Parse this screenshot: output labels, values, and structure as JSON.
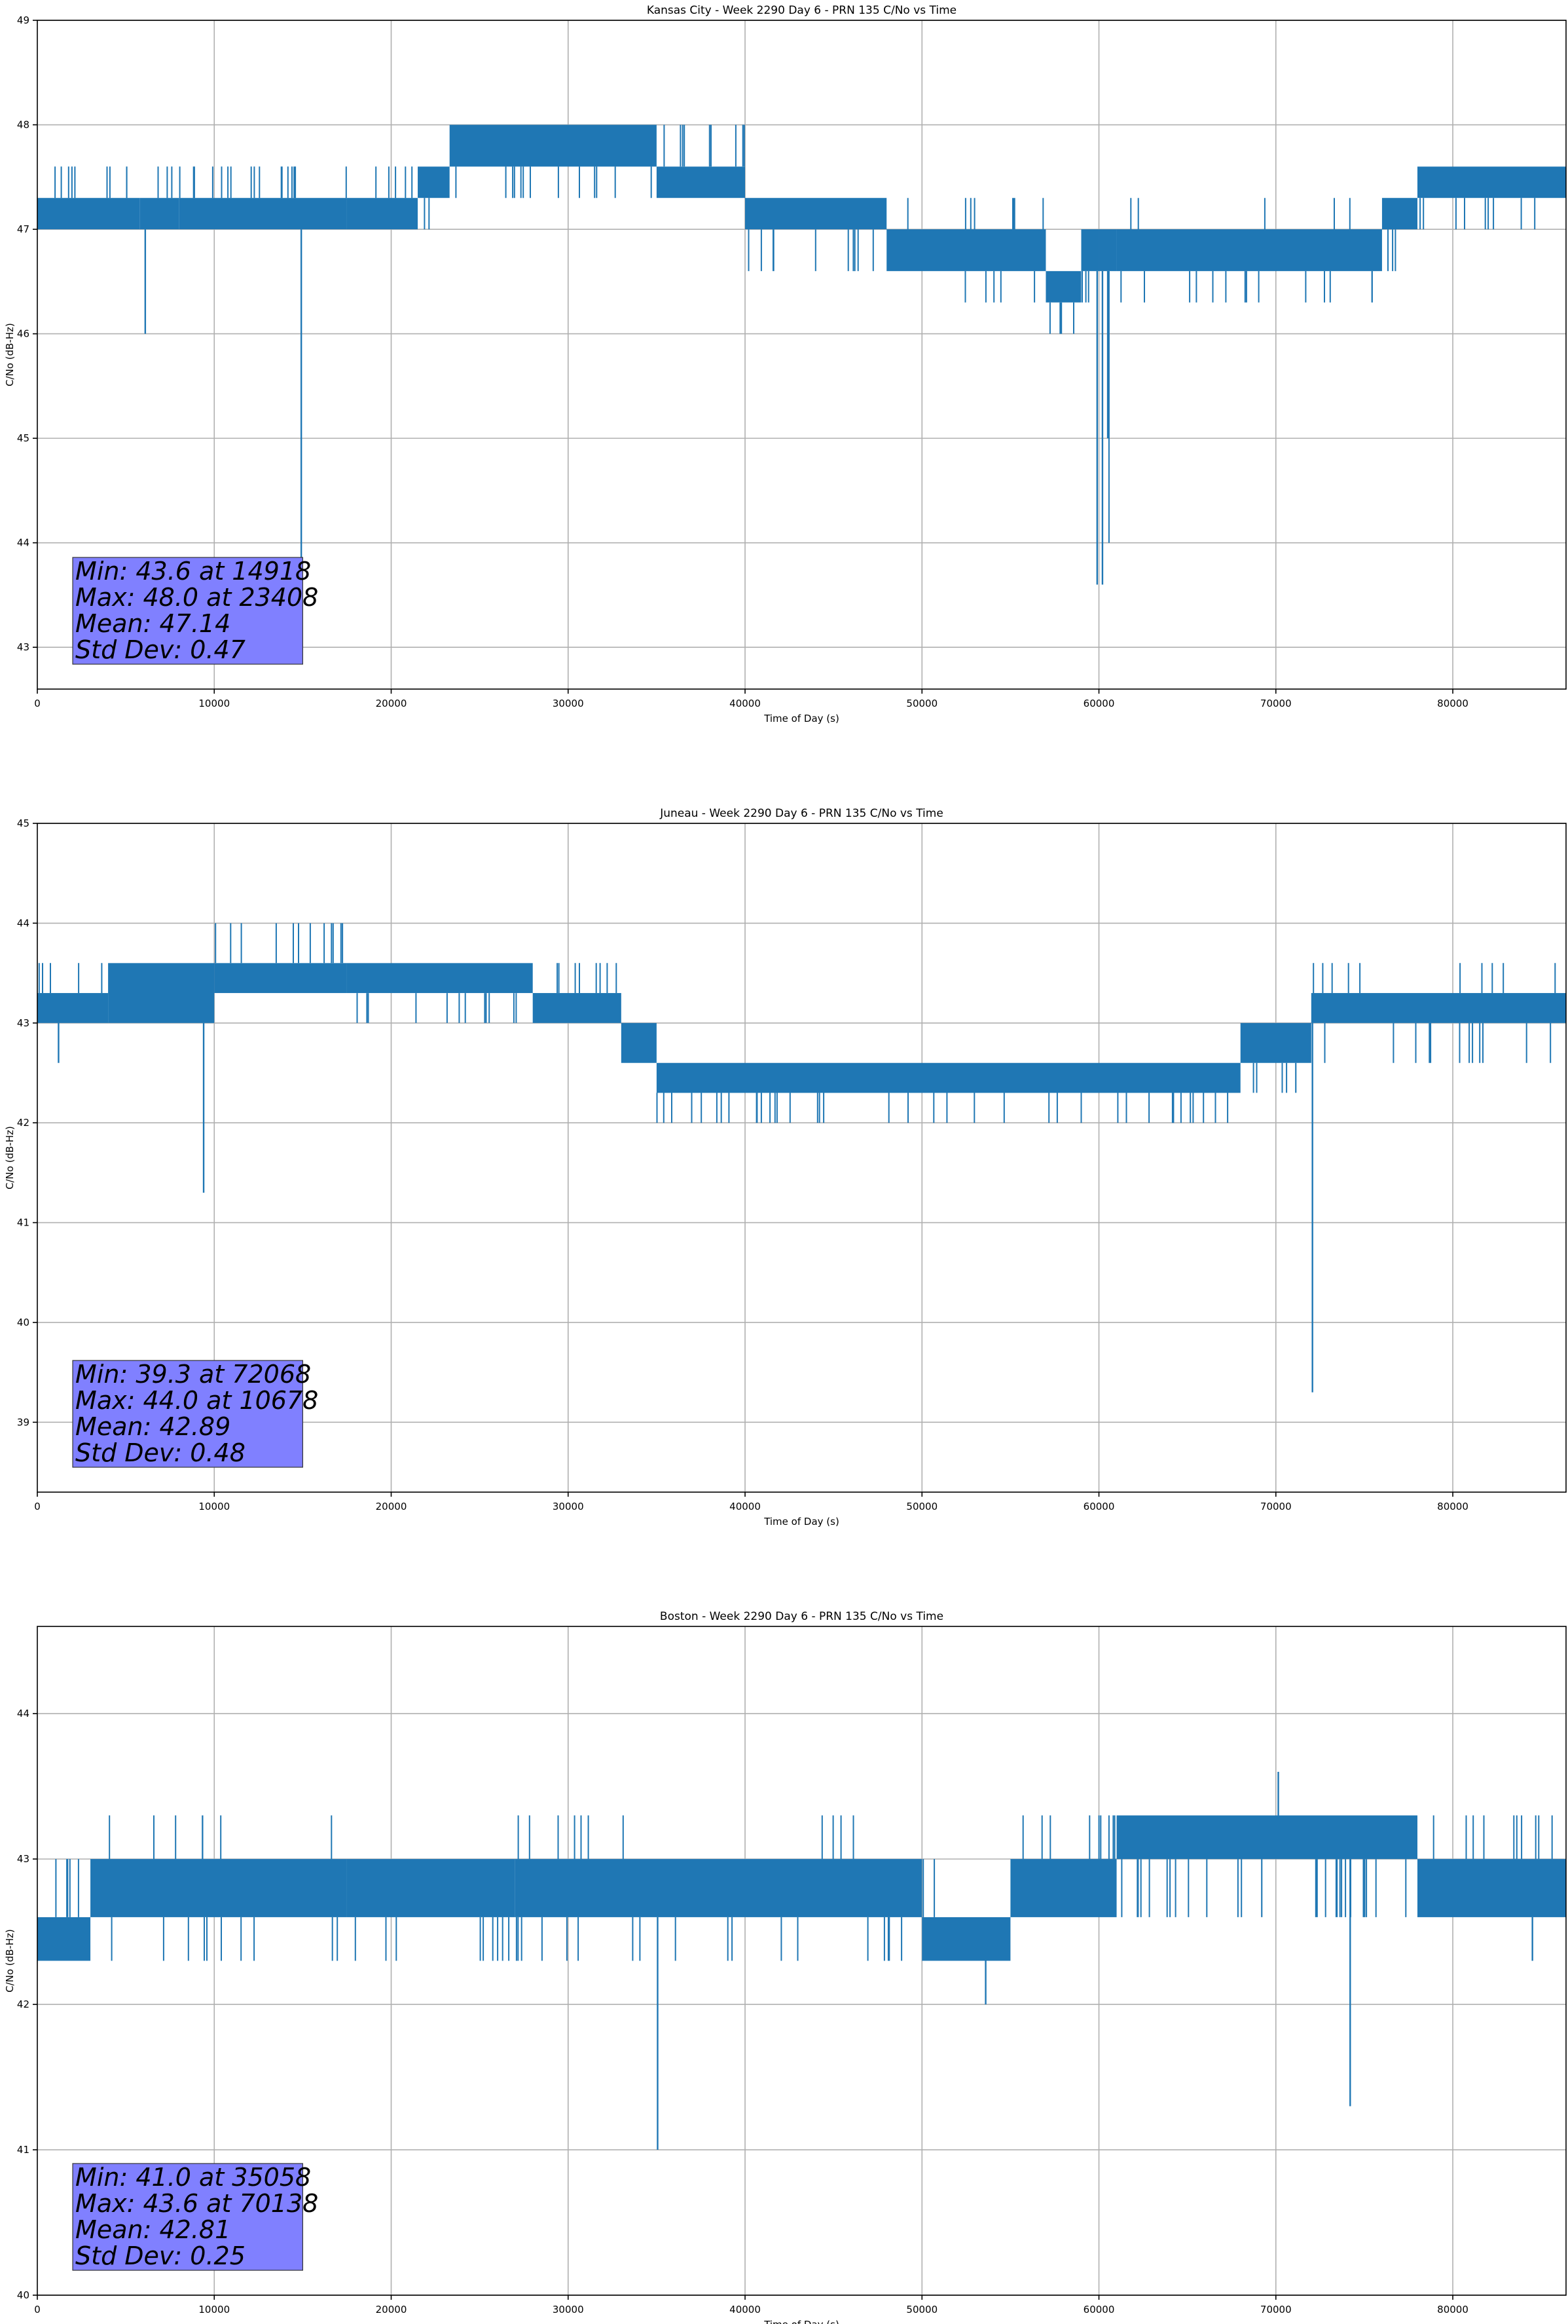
{
  "chart_data": [
    {
      "type": "line",
      "title": "Kansas City - Week 2290 Day 6 - PRN 135 C/No vs Time",
      "xlabel": "Time of Day (s)",
      "ylabel": "C/No (dB-Hz)",
      "xlim": [
        0,
        86400
      ],
      "ylim": [
        42.6,
        49
      ],
      "xticks": [
        "0",
        "10000",
        "20000",
        "30000",
        "40000",
        "50000",
        "60000",
        "70000",
        "80000"
      ],
      "yticks": [
        "43",
        "44",
        "45",
        "46",
        "47",
        "48",
        "49"
      ],
      "grid": true,
      "color": "#1f77b4",
      "stats_box": [
        "Min: 43.6 at 14918",
        "Max: 48.0 at 23408",
        "Mean: 47.14",
        "Std Dev: 0.47"
      ],
      "bands": [
        {
          "x": [
            0,
            5800
          ],
          "y": [
            47.0,
            47.3
          ],
          "spikes": [
            47.6
          ]
        },
        {
          "x": [
            5800,
            8000
          ],
          "y": [
            47.0,
            47.3
          ],
          "spikes": [
            47.6
          ]
        },
        {
          "x": [
            8000,
            17500
          ],
          "y": [
            47.0,
            47.3
          ],
          "spikes": [
            47.6
          ]
        },
        {
          "x": [
            17500,
            21500
          ],
          "y": [
            47.0,
            47.3
          ],
          "spikes": [
            47.6
          ]
        },
        {
          "x": [
            21500,
            23300
          ],
          "y": [
            47.3,
            47.6
          ],
          "spikes": [
            47.0
          ]
        },
        {
          "x": [
            23300,
            35000
          ],
          "y": [
            47.6,
            48.0
          ],
          "spikes": [
            47.3
          ]
        },
        {
          "x": [
            35000,
            40000
          ],
          "y": [
            47.3,
            47.6
          ],
          "spikes": [
            48.0
          ]
        },
        {
          "x": [
            40000,
            48000
          ],
          "y": [
            47.0,
            47.3
          ],
          "spikes": [
            46.6
          ]
        },
        {
          "x": [
            48000,
            57000
          ],
          "y": [
            46.6,
            47.0
          ],
          "spikes": [
            46.3,
            47.3
          ]
        },
        {
          "x": [
            57000,
            59000
          ],
          "y": [
            46.3,
            46.6
          ],
          "spikes": [
            46.0
          ]
        },
        {
          "x": [
            59000,
            60000
          ],
          "y": [
            46.6,
            47.0
          ],
          "spikes": [
            46.3
          ]
        },
        {
          "x": [
            60000,
            61000
          ],
          "y": [
            46.6,
            47.0
          ],
          "spikes": [
            44.0
          ]
        },
        {
          "x": [
            61000,
            76000
          ],
          "y": [
            46.6,
            47.0
          ],
          "spikes": [
            46.3,
            47.3
          ]
        },
        {
          "x": [
            76000,
            78000
          ],
          "y": [
            47.0,
            47.3
          ],
          "spikes": [
            46.6
          ]
        },
        {
          "x": [
            78000,
            86400
          ],
          "y": [
            47.3,
            47.6
          ],
          "spikes": [
            47.0
          ]
        }
      ],
      "dips": [
        [
          6100,
          46.0
        ],
        [
          14918,
          43.6
        ],
        [
          59900,
          43.6
        ],
        [
          60200,
          43.6
        ],
        [
          60500,
          45.0
        ]
      ]
    },
    {
      "type": "line",
      "title": "Juneau - Week 2290 Day 6 - PRN 135 C/No vs Time",
      "xlabel": "Time of Day (s)",
      "ylabel": "C/No (dB-Hz)",
      "xlim": [
        0,
        86400
      ],
      "ylim": [
        38.3,
        45
      ],
      "xticks": [
        "0",
        "10000",
        "20000",
        "30000",
        "40000",
        "50000",
        "60000",
        "70000",
        "80000"
      ],
      "yticks": [
        "39",
        "40",
        "41",
        "42",
        "43",
        "44",
        "45"
      ],
      "grid": true,
      "color": "#1f77b4",
      "stats_box": [
        "Min: 39.3 at 72068",
        "Max: 44.0 at 10678",
        "Mean: 42.89",
        "Std Dev: 0.48"
      ],
      "bands": [
        {
          "x": [
            0,
            4000
          ],
          "y": [
            43.0,
            43.3
          ],
          "spikes": [
            43.6
          ]
        },
        {
          "x": [
            4000,
            10000
          ],
          "y": [
            43.0,
            43.6
          ],
          "spikes": [
            43.0
          ]
        },
        {
          "x": [
            10000,
            17500
          ],
          "y": [
            43.3,
            43.6
          ],
          "spikes": [
            44.0
          ]
        },
        {
          "x": [
            17500,
            28000
          ],
          "y": [
            43.3,
            43.6
          ],
          "spikes": [
            43.0
          ]
        },
        {
          "x": [
            28000,
            33000
          ],
          "y": [
            43.0,
            43.3
          ],
          "spikes": [
            43.6
          ]
        },
        {
          "x": [
            33000,
            35000
          ],
          "y": [
            42.6,
            43.0
          ],
          "spikes": [
            43.3
          ]
        },
        {
          "x": [
            35000,
            68000
          ],
          "y": [
            42.3,
            42.6
          ],
          "spikes": [
            42.0
          ]
        },
        {
          "x": [
            68000,
            72000
          ],
          "y": [
            42.6,
            43.0
          ],
          "spikes": [
            42.3
          ]
        },
        {
          "x": [
            72000,
            86400
          ],
          "y": [
            43.0,
            43.3
          ],
          "spikes": [
            42.6,
            43.6
          ]
        }
      ],
      "dips": [
        [
          1200,
          42.6
        ],
        [
          9400,
          41.3
        ],
        [
          72068,
          39.3
        ]
      ]
    },
    {
      "type": "line",
      "title": "Boston - Week 2290 Day 6 - PRN 135 C/No vs Time",
      "xlabel": "Time of Day (s)",
      "ylabel": "C/No (dB-Hz)",
      "xlim": [
        0,
        86400
      ],
      "ylim": [
        40,
        44.6
      ],
      "xticks": [
        "0",
        "10000",
        "20000",
        "30000",
        "40000",
        "50000",
        "60000",
        "70000",
        "80000"
      ],
      "yticks": [
        "40",
        "41",
        "42",
        "43",
        "44"
      ],
      "grid": true,
      "color": "#1f77b4",
      "stats_box": [
        "Min: 41.0 at 35058",
        "Max: 43.6 at 70138",
        "Mean: 42.81",
        "Std Dev: 0.25"
      ],
      "bands": [
        {
          "x": [
            0,
            3000
          ],
          "y": [
            42.3,
            42.6
          ],
          "spikes": [
            43.0
          ]
        },
        {
          "x": [
            3000,
            17500
          ],
          "y": [
            42.6,
            43.0
          ],
          "spikes": [
            43.3,
            42.3
          ]
        },
        {
          "x": [
            17500,
            27000
          ],
          "y": [
            42.6,
            43.0
          ],
          "spikes": [
            42.3
          ]
        },
        {
          "x": [
            27000,
            50000
          ],
          "y": [
            42.6,
            43.0
          ],
          "spikes": [
            43.3,
            42.3
          ]
        },
        {
          "x": [
            50000,
            55000
          ],
          "y": [
            42.3,
            42.6
          ],
          "spikes": [
            43.0
          ]
        },
        {
          "x": [
            55000,
            61000
          ],
          "y": [
            42.6,
            43.0
          ],
          "spikes": [
            43.3
          ]
        },
        {
          "x": [
            61000,
            78000
          ],
          "y": [
            43.0,
            43.3
          ],
          "spikes": [
            42.6
          ]
        },
        {
          "x": [
            78000,
            86400
          ],
          "y": [
            42.6,
            43.0
          ],
          "spikes": [
            43.3
          ]
        }
      ],
      "dips": [
        [
          35058,
          41.0
        ],
        [
          53600,
          42.0
        ],
        [
          70138,
          43.6
        ],
        [
          74200,
          41.3
        ],
        [
          84500,
          42.3
        ]
      ]
    }
  ]
}
